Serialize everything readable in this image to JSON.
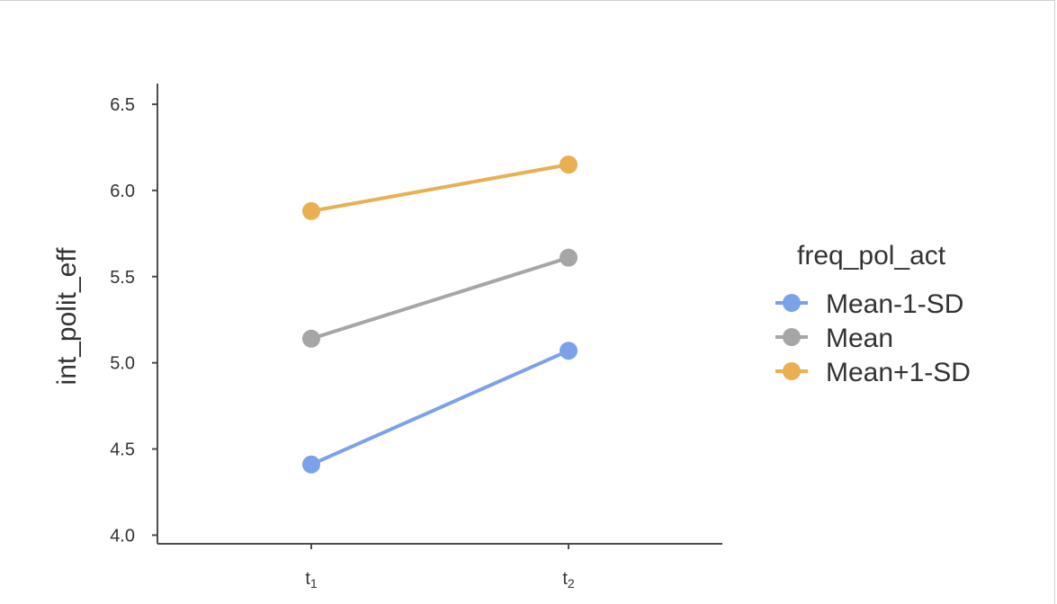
{
  "chart_data": {
    "type": "line",
    "title": "",
    "xlabel": "",
    "ylabel": "int_polit_eff",
    "categories": [
      {
        "base": "t",
        "sub": "1"
      },
      {
        "base": "t",
        "sub": "2"
      }
    ],
    "ylim": [
      3.95,
      6.62
    ],
    "yticks": [
      4.0,
      4.5,
      5.0,
      5.5,
      6.0,
      6.5
    ],
    "ytick_labels": [
      "4.0",
      "4.5",
      "5.0",
      "5.5",
      "6.0",
      "6.5"
    ],
    "grid": false,
    "legend": {
      "title": "freq_pol_act",
      "placement": "right"
    },
    "series": [
      {
        "name": "Mean-1-SD",
        "values": [
          4.41,
          5.07
        ],
        "color": "#7ba2e8"
      },
      {
        "name": "Mean",
        "values": [
          5.14,
          5.61
        ],
        "color": "#a6a6a6"
      },
      {
        "name": "Mean+1-SD",
        "values": [
          5.88,
          6.15
        ],
        "color": "#e8b050"
      }
    ]
  }
}
